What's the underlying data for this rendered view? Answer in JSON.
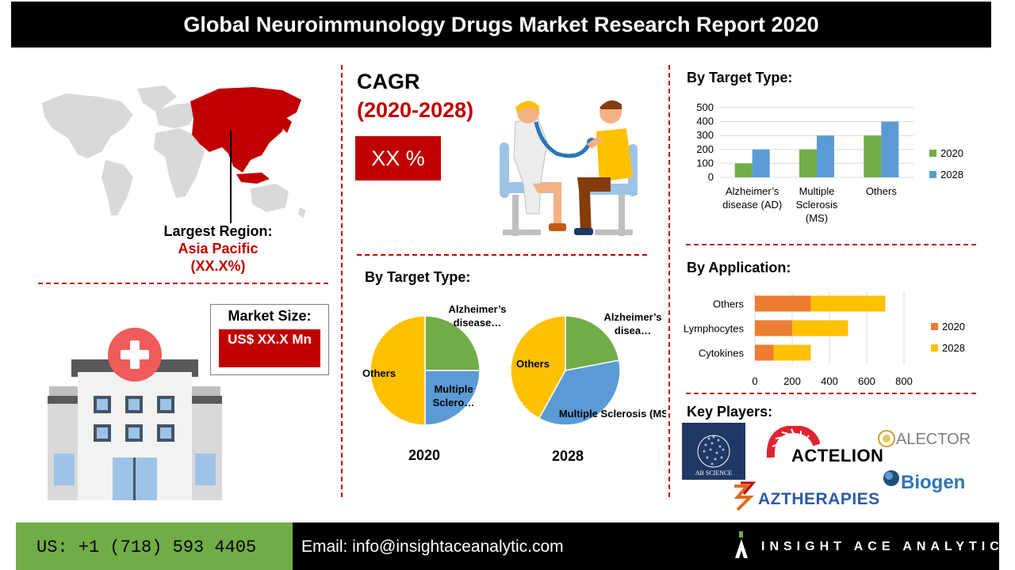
{
  "title": "Global Neuroimmunology Drugs Market Research Report 2020",
  "region": {
    "heading": "Largest Region:",
    "name": "Asia Pacific",
    "share": "(XX.X%)"
  },
  "cagr": {
    "label": "CAGR",
    "period": "(2020-2028)",
    "value": "XX %"
  },
  "market_size": {
    "heading": "Market Size:",
    "value": "US$ XX.X Mn"
  },
  "pie_section": {
    "heading": "By Target Type:",
    "year1": "2020",
    "year2": "2028"
  },
  "bar_section": {
    "heading": "By Target Type:"
  },
  "app_section": {
    "heading": "By Application:"
  },
  "players": {
    "heading": "Key Players:",
    "logos": [
      "AB SCIENCE",
      "ACTELION",
      "ALECTOR",
      "Biogen",
      "AZTHERAPIES"
    ]
  },
  "footer": {
    "phone": "US: +1 (718) 593 4405",
    "email": "Email: info@insightaceanalytic.com",
    "brand": "INSIGHT ACE ANALYTIC"
  },
  "colors": {
    "accent": "#c00000",
    "green": "#70ad47",
    "blue": "#5b9bd5",
    "orange": "#ed7d31",
    "yellow": "#ffc000"
  },
  "chart_data": [
    {
      "type": "pie",
      "year": "2020",
      "labels": [
        "Alzheimer’s disease…",
        "Multiple Sclero…",
        "Others"
      ],
      "values": [
        25,
        25,
        50
      ],
      "colors": [
        "#70ad47",
        "#5b9bd5",
        "#ffc000"
      ]
    },
    {
      "type": "pie",
      "year": "2028",
      "labels": [
        "Alzheimer’s disea…",
        "Multiple Sclerosis (MS)",
        "Others"
      ],
      "values": [
        22,
        36,
        42
      ],
      "colors": [
        "#70ad47",
        "#5b9bd5",
        "#ffc000"
      ]
    },
    {
      "type": "bar",
      "categories": [
        "Alzheimer’s disease (AD)",
        "Multiple Sclerosis (MS)",
        "Others"
      ],
      "series": [
        {
          "name": "2020",
          "values": [
            100,
            200,
            300
          ],
          "color": "#70ad47"
        },
        {
          "name": "2028",
          "values": [
            200,
            300,
            400
          ],
          "color": "#5b9bd5"
        }
      ],
      "ylim": [
        0,
        500
      ],
      "yticks": [
        0,
        100,
        200,
        300,
        400,
        500
      ],
      "grid": true,
      "legend": "right"
    },
    {
      "type": "bar",
      "orientation": "horizontal",
      "stacked": true,
      "categories": [
        "Others",
        "Lymphocytes",
        "Cytokines"
      ],
      "series": [
        {
          "name": "2020",
          "values": [
            300,
            200,
            100
          ],
          "color": "#ed7d31"
        },
        {
          "name": "2028",
          "values": [
            400,
            300,
            200
          ],
          "color": "#ffc000"
        }
      ],
      "xlim": [
        0,
        800
      ],
      "xticks": [
        0,
        200,
        400,
        600,
        800
      ],
      "grid": true,
      "legend": "right"
    }
  ]
}
